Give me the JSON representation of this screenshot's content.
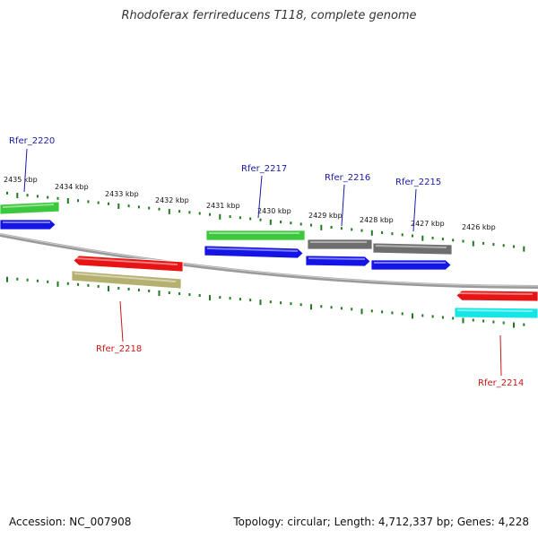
{
  "title": "Rhodoferax ferrireducens T118, complete genome",
  "footer": {
    "accession": "Accession: NC_007908",
    "summary": "Topology: circular; Length: 4,712,337 bp; Genes: 4,228"
  },
  "colors": {
    "backbone": "#808080",
    "ticks": "#1e7a1e",
    "forward_label": "#1a1aa8",
    "reverse_label": "#c81818",
    "green": "#3cc83c",
    "blue": "#1414e6",
    "gray": "#6e6e6e",
    "red": "#e61414",
    "olive": "#b4b070",
    "cyan": "#14e6e6"
  },
  "scale_labels": [
    "2435 kbp",
    "2434 kbp",
    "2433 kbp",
    "2432 kbp",
    "2431 kbp",
    "2430 kbp",
    "2429 kbp",
    "2428 kbp",
    "2427 kbp",
    "2426 kbp"
  ],
  "gene_labels": [
    {
      "text": "Rfer_2220",
      "strand": "forward"
    },
    {
      "text": "Rfer_2217",
      "strand": "forward"
    },
    {
      "text": "Rfer_2216",
      "strand": "forward"
    },
    {
      "text": "Rfer_2215",
      "strand": "forward"
    },
    {
      "text": "Rfer_2218",
      "strand": "reverse"
    },
    {
      "text": "Rfer_2214",
      "strand": "reverse"
    }
  ]
}
